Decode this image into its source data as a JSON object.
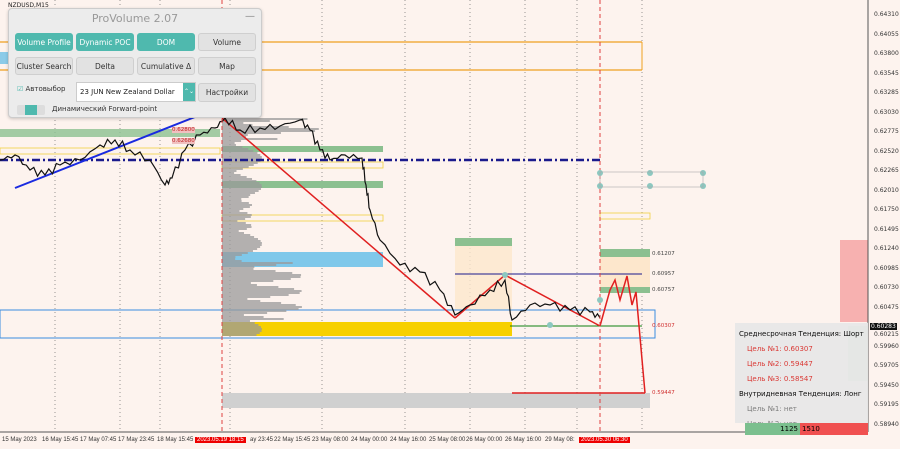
{
  "symbol": "NZDUSD,M15",
  "panel": {
    "title": "ProVolume 2.07",
    "minimize": "—",
    "buttons": [
      {
        "label": "Volume Profile",
        "active": true
      },
      {
        "label": "Dynamic POC",
        "active": true
      },
      {
        "label": "DOM",
        "active": true
      },
      {
        "label": "Volume",
        "active": false
      },
      {
        "label": "Cluster Search",
        "active": false
      },
      {
        "label": "Delta",
        "active": false
      },
      {
        "label": "Cumulative Δ",
        "active": false
      },
      {
        "label": "Map",
        "active": false
      }
    ],
    "autoselect_label": "Автовыбор",
    "autoselect_checked": true,
    "instrument": "23 JUN New Zealand Dollar",
    "settings_label": "Настройки",
    "forward_point_label": "Динамический Forward-point"
  },
  "price_axis": [
    "0.64310",
    "0.64055",
    "0.63800",
    "0.63545",
    "0.63285",
    "0.63030",
    "0.62775",
    "0.62520",
    "0.62265",
    "0.62010",
    "0.61750",
    "0.61495",
    "0.61240",
    "0.60985",
    "0.60730",
    "0.60475",
    "0.60215",
    "0.59960",
    "0.59705",
    "0.59450",
    "0.59195",
    "0.58940"
  ],
  "current_price": "0.60283",
  "level_labels": [
    "0.62800",
    "0.62680",
    "0.61207",
    "0.60957",
    "0.60757",
    "0.60307",
    "0.59447"
  ],
  "time_axis": [
    "15 May 2023",
    "16 May 15:45",
    "17 May 07:45",
    "17 May 23:45",
    "18 May 15:45",
    "2023.05.19 18:15",
    "ay 23:45",
    "22 May 15:45",
    "23 May 08:00",
    "24 May 00:00",
    "24 May 16:00",
    "25 May 08:00",
    "26 May 00:00",
    "26 May 16:00",
    "29 May 08:",
    "2023.05.30 06:30"
  ],
  "info": {
    "medium_trend": "Среднесрочная Тенденция: Шорт",
    "medium_targets": [
      "Цель №1: 0.60307",
      "Цель №2: 0.59447",
      "Цель №3: 0.58547"
    ],
    "intraday_trend": "Внутридневная Тенденция: Лонг",
    "intraday_targets": [
      "Цель №1: нет",
      "Цель №2: нет"
    ],
    "buy_volume": "1125",
    "sell_volume": "1510"
  },
  "colors": {
    "accent": "#4fb9ae",
    "sell": "#f05050",
    "buy": "#7bbf8e",
    "trend_line": "#e02020",
    "poc_line": "#1a1a8c"
  }
}
